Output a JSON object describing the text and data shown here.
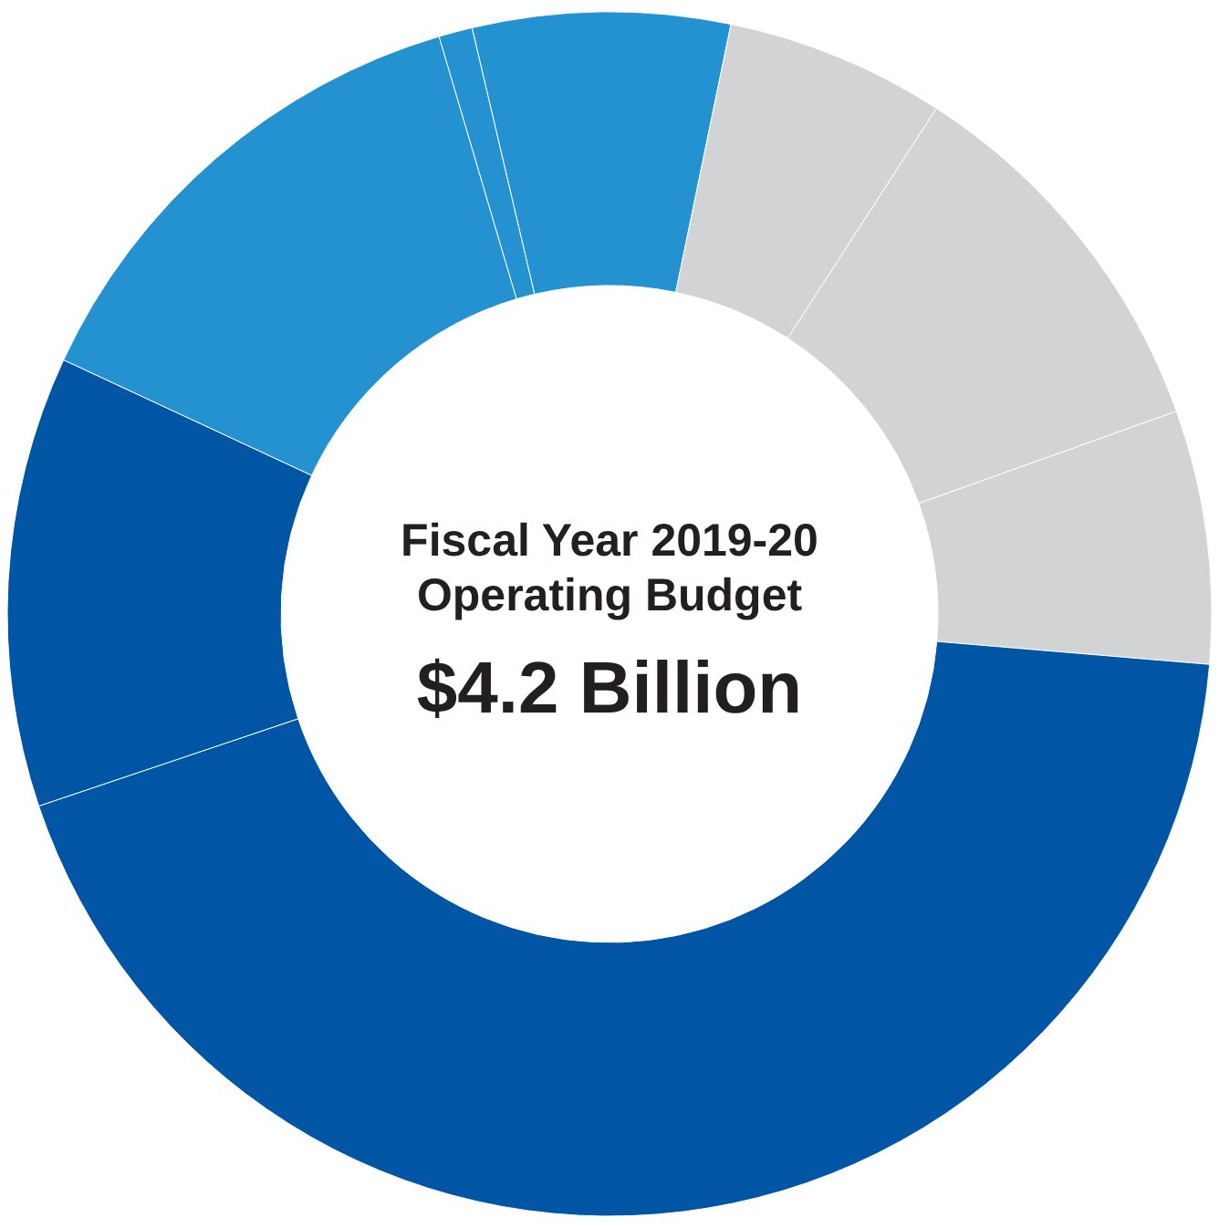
{
  "chart_data": {
    "type": "donut",
    "title": "Fiscal Year 2019-20 Operating Budget",
    "subtitle": "$4.2 Billion",
    "categories": [
      null,
      null,
      null,
      null,
      null,
      null,
      null,
      null
    ],
    "values": [
      6.9,
      5.9,
      10.4,
      6.8,
      43.5,
      12.1,
      13.5,
      0.9
    ],
    "colors": [
      "#2492d0",
      "#d1d3d4",
      "#d1d3d4",
      "#d1d3d4",
      "#0055a5",
      "#0055a5",
      "#2492d0",
      "#2492d0"
    ]
  }
}
